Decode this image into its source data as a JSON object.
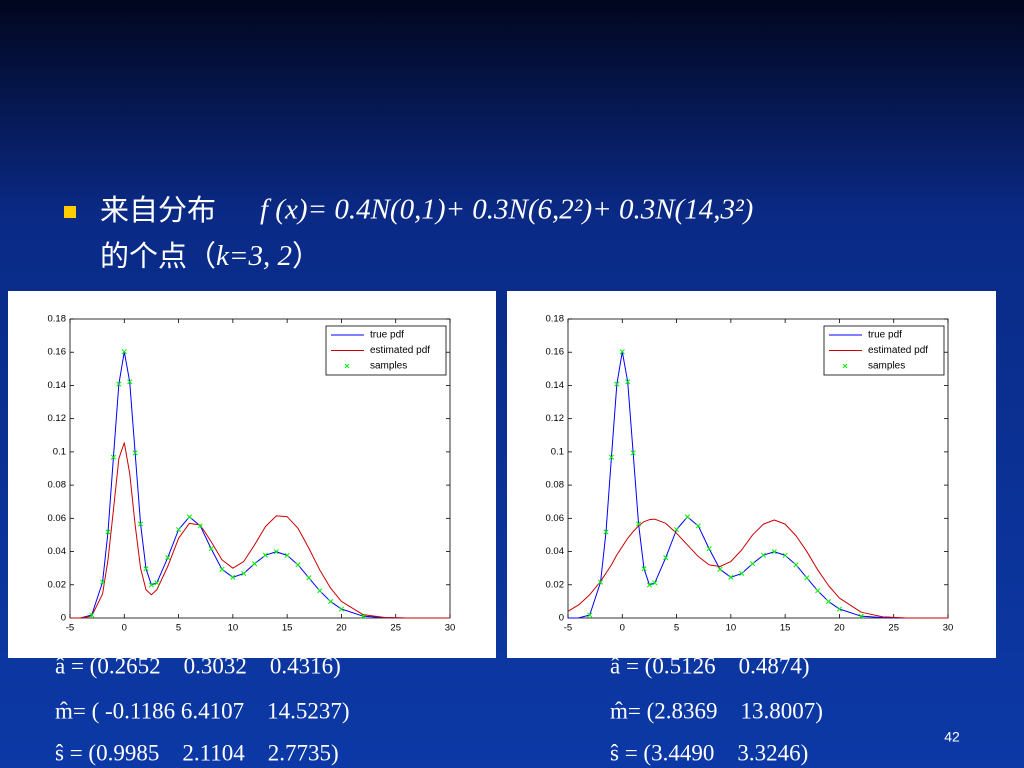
{
  "slide": {
    "bullet_line_1": {
      "text": "来自分布",
      "formula": "f (x)= 0.4N(0,1)+ 0.3N(6,2²)+ 0.3N(14,3²)"
    },
    "bullet_line_2": {
      "text": "的个点（",
      "formula": "k=3, 2",
      "close": "）"
    },
    "page_number": "42"
  },
  "chart_data": [
    {
      "type": "line",
      "x": [
        -5,
        -4,
        -3,
        -2,
        -1.5,
        -1,
        -0.5,
        0,
        0.5,
        1,
        1.5,
        2,
        2.5,
        3,
        4,
        5,
        6,
        7,
        8,
        9,
        10,
        11,
        12,
        13,
        14,
        15,
        16,
        17,
        18,
        19,
        20,
        22,
        24,
        26,
        28,
        30
      ],
      "series": [
        {
          "name": "true pdf",
          "color": "#0000ff",
          "style": "line",
          "values": [
            0,
            0.0001,
            0.0018,
            0.0216,
            0.0518,
            0.0968,
            0.1408,
            0.1603,
            0.1422,
            0.0994,
            0.0566,
            0.0297,
            0.0199,
            0.0212,
            0.0363,
            0.0532,
            0.0609,
            0.0554,
            0.0417,
            0.0293,
            0.0245,
            0.0268,
            0.0327,
            0.0378,
            0.0399,
            0.0377,
            0.032,
            0.0242,
            0.0164,
            0.0099,
            0.0054,
            0.0011,
            0.0002,
            0,
            0,
            0
          ]
        },
        {
          "name": "estimated pdf",
          "color": "#cc0000",
          "style": "line",
          "values": [
            0,
            0.0001,
            0.0012,
            0.0145,
            0.035,
            0.065,
            0.096,
            0.1055,
            0.087,
            0.056,
            0.03,
            0.017,
            0.014,
            0.017,
            0.031,
            0.048,
            0.057,
            0.056,
            0.046,
            0.035,
            0.03,
            0.034,
            0.044,
            0.055,
            0.0615,
            0.061,
            0.054,
            0.042,
            0.029,
            0.018,
            0.01,
            0.002,
            0.0003,
            0,
            0,
            0
          ]
        },
        {
          "name": "samples",
          "color": "#00ee00",
          "style": "marker",
          "values": [
            null,
            null,
            0.0018,
            0.0216,
            0.0518,
            0.0968,
            0.1408,
            0.1603,
            0.1422,
            0.0994,
            0.0566,
            0.0297,
            0.0199,
            0.0212,
            0.0363,
            0.0532,
            0.0609,
            0.0554,
            0.0417,
            0.0293,
            0.0245,
            0.0268,
            0.0327,
            0.0378,
            0.0399,
            0.0377,
            0.032,
            0.0242,
            0.0164,
            0.0099,
            0.0054,
            0.0011,
            null,
            null,
            null,
            null
          ]
        }
      ],
      "xlim": [
        -5,
        30
      ],
      "xticks": [
        -5,
        0,
        5,
        10,
        15,
        20,
        25,
        30
      ],
      "ylim": [
        0,
        0.18
      ],
      "yticks": [
        0,
        0.02,
        0.04,
        0.06,
        0.08,
        0.1,
        0.12,
        0.14,
        0.16,
        0.18
      ],
      "grid": false,
      "legend": "upper right"
    },
    {
      "type": "line",
      "x": [
        -5,
        -4,
        -3,
        -2,
        -1.5,
        -1,
        -0.5,
        0,
        0.5,
        1,
        1.5,
        2,
        2.5,
        3,
        4,
        5,
        6,
        7,
        8,
        9,
        10,
        11,
        12,
        13,
        14,
        15,
        16,
        17,
        18,
        19,
        20,
        22,
        24,
        26,
        28,
        30
      ],
      "series": [
        {
          "name": "true pdf",
          "color": "#0000ff",
          "style": "line",
          "values": [
            0,
            0.0001,
            0.0018,
            0.0216,
            0.0518,
            0.0968,
            0.1408,
            0.1603,
            0.1422,
            0.0994,
            0.0566,
            0.0297,
            0.0199,
            0.0212,
            0.0363,
            0.0532,
            0.0609,
            0.0554,
            0.0417,
            0.0293,
            0.0245,
            0.0268,
            0.0327,
            0.0378,
            0.0399,
            0.0377,
            0.032,
            0.0242,
            0.0164,
            0.0099,
            0.0054,
            0.0011,
            0.0002,
            0,
            0,
            0
          ]
        },
        {
          "name": "estimated pdf",
          "color": "#cc0000",
          "style": "line",
          "values": [
            0.004,
            0.008,
            0.014,
            0.022,
            0.027,
            0.032,
            0.038,
            0.043,
            0.048,
            0.052,
            0.0555,
            0.058,
            0.0592,
            0.0595,
            0.057,
            0.051,
            0.044,
            0.037,
            0.032,
            0.031,
            0.034,
            0.041,
            0.05,
            0.0565,
            0.059,
            0.0565,
            0.0495,
            0.04,
            0.029,
            0.0195,
            0.012,
            0.0035,
            0.0007,
            0.0001,
            0,
            0
          ]
        },
        {
          "name": "samples",
          "color": "#00ee00",
          "style": "marker",
          "values": [
            null,
            null,
            0.0018,
            0.0216,
            0.0518,
            0.0968,
            0.1408,
            0.1603,
            0.1422,
            0.0994,
            0.0566,
            0.0297,
            0.0199,
            0.0212,
            0.0363,
            0.0532,
            0.0609,
            0.0554,
            0.0417,
            0.0293,
            0.0245,
            0.0268,
            0.0327,
            0.0378,
            0.0399,
            0.0377,
            0.032,
            0.0242,
            0.0164,
            0.0099,
            0.0054,
            0.0011,
            null,
            null,
            null,
            null
          ]
        }
      ],
      "xlim": [
        -5,
        30
      ],
      "xticks": [
        -5,
        0,
        5,
        10,
        15,
        20,
        25,
        30
      ],
      "ylim": [
        0,
        0.18
      ],
      "yticks": [
        0,
        0.02,
        0.04,
        0.06,
        0.08,
        0.1,
        0.12,
        0.14,
        0.16,
        0.18
      ],
      "grid": false,
      "legend": "upper right"
    }
  ],
  "estimates": [
    [
      "â = (0.2652    0.3032    0.4316)",
      "m̂= ( -0.1186 6.4107    14.5237)",
      "ŝ = (0.9985    2.1104    2.7735)"
    ],
    [
      "â = (0.5126    0.4874)",
      "m̂= (2.8369    13.8007)",
      "ŝ = (3.4490    3.3246)"
    ]
  ]
}
